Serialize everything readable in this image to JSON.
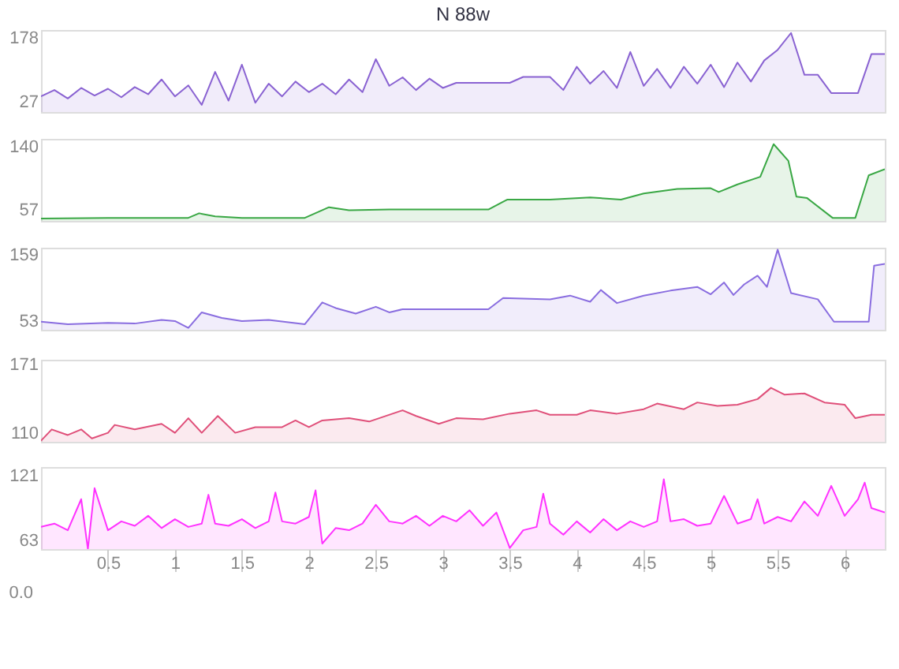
{
  "chart_data": [
    {
      "type": "area",
      "title": "N 88w",
      "xlim": [
        0,
        6.3
      ],
      "ylim": [
        3,
        197
      ],
      "yticks": [
        27,
        178
      ],
      "tick_labels": "y",
      "grid": false,
      "x": [
        0.0,
        0.1,
        0.2,
        0.3,
        0.4,
        0.5,
        0.6,
        0.7,
        0.8,
        0.9,
        1.0,
        1.1,
        1.2,
        1.3,
        1.4,
        1.5,
        1.6,
        1.7,
        1.8,
        1.9,
        2.0,
        2.1,
        2.2,
        2.3,
        2.4,
        2.5,
        2.6,
        2.7,
        2.8,
        2.9,
        3.0,
        3.1,
        3.2,
        3.3,
        3.4,
        3.5,
        3.6,
        3.7,
        3.8,
        3.9,
        4.0,
        4.1,
        4.2,
        4.3,
        4.4,
        4.5,
        4.6,
        4.7,
        4.8,
        4.9,
        5.0,
        5.1,
        5.2,
        5.3,
        5.4,
        5.5,
        5.6,
        5.7,
        5.8,
        5.9,
        6.0,
        6.1,
        6.2,
        6.3
      ],
      "series": [
        {
          "color": "#8a63d2",
          "values": [
            40,
            55,
            35,
            60,
            42,
            58,
            38,
            62,
            45,
            80,
            40,
            66,
            20,
            98,
            30,
            115,
            25,
            70,
            40,
            75,
            50,
            70,
            45,
            80,
            50,
            128,
            65,
            85,
            55,
            82,
            60,
            72,
            72,
            72,
            72,
            72,
            86,
            86,
            86,
            55,
            110,
            70,
            100,
            60,
            145,
            65,
            105,
            60,
            110,
            70,
            115,
            62,
            120,
            75,
            125,
            150,
            190,
            91,
            91,
            48,
            48,
            48,
            140,
            140
          ]
        }
      ]
    },
    {
      "type": "area",
      "xlim": [
        0,
        6.3
      ],
      "ylim": [
        42,
        150
      ],
      "yticks": [
        57,
        140
      ],
      "tick_labels": "y",
      "grid": false,
      "x": [
        0,
        0.5,
        1.0,
        1.1,
        1.18,
        1.3,
        1.5,
        1.97,
        2.15,
        2.3,
        2.6,
        3.0,
        3.34,
        3.48,
        3.8,
        4.1,
        4.33,
        4.5,
        4.75,
        5.0,
        5.06,
        5.2,
        5.37,
        5.47,
        5.58,
        5.64,
        5.72,
        5.91,
        6.08,
        6.18,
        6.3
      ],
      "series": [
        {
          "color": "#3aa845",
          "values": [
            45,
            46,
            46,
            46,
            52,
            48,
            46,
            46,
            60,
            56,
            57,
            57,
            57,
            70,
            70,
            73,
            70,
            78,
            84,
            85,
            80,
            90,
            100,
            143,
            121,
            74,
            72,
            46,
            46,
            102,
            110
          ]
        }
      ]
    },
    {
      "type": "area",
      "xlim": [
        0,
        6.3
      ],
      "ylim": [
        39,
        171
      ],
      "tick_labels": "y",
      "yticks": [
        53,
        159
      ],
      "grid": false,
      "x": [
        0,
        0.2,
        0.5,
        0.7,
        0.9,
        1.0,
        1.1,
        1.2,
        1.35,
        1.5,
        1.7,
        1.97,
        2.1,
        2.2,
        2.35,
        2.5,
        2.6,
        2.7,
        3.0,
        3.34,
        3.45,
        3.8,
        3.95,
        4.1,
        4.18,
        4.3,
        4.5,
        4.7,
        4.9,
        5.0,
        5.1,
        5.17,
        5.25,
        5.35,
        5.42,
        5.5,
        5.6,
        5.8,
        5.92,
        6.18,
        6.22,
        6.3
      ],
      "series": [
        {
          "color": "#8a6ee0",
          "values": [
            52,
            48,
            50,
            49,
            55,
            53,
            42,
            67,
            58,
            53,
            55,
            48,
            83,
            74,
            65,
            76,
            67,
            72,
            72,
            72,
            90,
            88,
            94,
            84,
            103,
            82,
            94,
            102,
            108,
            96,
            115,
            95,
            112,
            126,
            108,
            168,
            98,
            88,
            52,
            52,
            142,
            145
          ]
        }
      ]
    },
    {
      "type": "area",
      "xlim": [
        0,
        6.3
      ],
      "ylim": [
        102,
        175
      ],
      "tick_labels": "y",
      "yticks": [
        110,
        171
      ],
      "grid": false,
      "x": [
        0,
        0.08,
        0.2,
        0.3,
        0.38,
        0.5,
        0.55,
        0.7,
        0.9,
        1.0,
        1.1,
        1.2,
        1.32,
        1.45,
        1.6,
        1.8,
        1.9,
        2.0,
        2.1,
        2.3,
        2.45,
        2.7,
        2.8,
        2.97,
        3.1,
        3.3,
        3.5,
        3.7,
        3.8,
        4.0,
        4.1,
        4.3,
        4.5,
        4.6,
        4.8,
        4.9,
        5.05,
        5.2,
        5.35,
        5.45,
        5.55,
        5.7,
        5.85,
        6.0,
        6.08,
        6.2,
        6.3
      ],
      "series": [
        {
          "color": "#e0507a",
          "values": [
            103,
            113,
            108,
            113,
            105,
            110,
            117,
            113,
            118,
            110,
            123,
            110,
            125,
            110,
            115,
            115,
            121,
            115,
            121,
            123,
            120,
            130,
            125,
            118,
            123,
            122,
            127,
            130,
            126,
            126,
            130,
            127,
            131,
            136,
            131,
            137,
            134,
            135,
            140,
            150,
            144,
            145,
            137,
            135,
            123,
            126,
            126
          ]
        }
      ]
    },
    {
      "type": "area",
      "xlim": [
        0,
        6.3
      ],
      "ylim": [
        55,
        129
      ],
      "yticks": [
        63,
        121
      ],
      "xticks": [
        0.5,
        1,
        1.5,
        2,
        2.5,
        3,
        3.5,
        4,
        4.5,
        5,
        5.5,
        6
      ],
      "grid": false,
      "annotations": [
        "0.0"
      ],
      "x": [
        0,
        0.1,
        0.2,
        0.3,
        0.35,
        0.4,
        0.5,
        0.6,
        0.7,
        0.8,
        0.9,
        1.0,
        1.1,
        1.2,
        1.25,
        1.3,
        1.4,
        1.5,
        1.6,
        1.7,
        1.75,
        1.8,
        1.9,
        2.0,
        2.05,
        2.1,
        2.2,
        2.3,
        2.4,
        2.5,
        2.6,
        2.7,
        2.8,
        2.9,
        3.0,
        3.1,
        3.2,
        3.3,
        3.4,
        3.5,
        3.6,
        3.7,
        3.75,
        3.8,
        3.9,
        4.0,
        4.1,
        4.2,
        4.3,
        4.4,
        4.5,
        4.6,
        4.65,
        4.7,
        4.8,
        4.9,
        5.0,
        5.1,
        5.2,
        5.3,
        5.35,
        5.4,
        5.5,
        5.6,
        5.7,
        5.8,
        5.9,
        6.0,
        6.1,
        6.15,
        6.2,
        6.3
      ],
      "series": [
        {
          "color": "#ff33ff",
          "values": [
            75,
            78,
            72,
            100,
            55,
            110,
            72,
            80,
            76,
            85,
            74,
            82,
            75,
            78,
            104,
            78,
            76,
            82,
            74,
            80,
            106,
            80,
            78,
            84,
            108,
            60,
            74,
            72,
            78,
            95,
            80,
            78,
            85,
            76,
            85,
            80,
            90,
            76,
            88,
            56,
            72,
            75,
            105,
            78,
            68,
            80,
            70,
            82,
            72,
            80,
            75,
            80,
            118,
            80,
            82,
            76,
            78,
            103,
            78,
            82,
            100,
            78,
            84,
            80,
            98,
            85,
            112,
            85,
            100,
            115,
            92,
            88
          ]
        }
      ]
    }
  ]
}
